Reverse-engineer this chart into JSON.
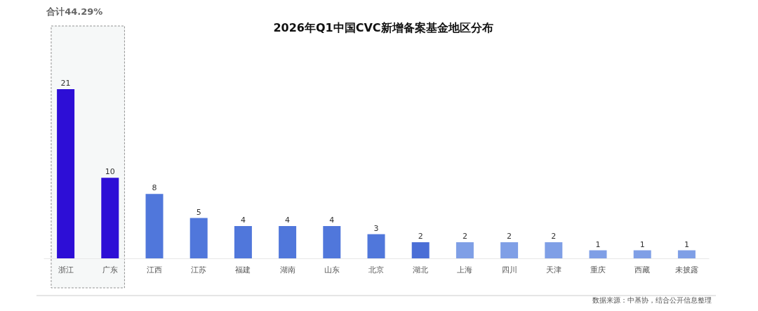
{
  "chart_data": {
    "type": "bar",
    "title": "2026年Q1中国CVC新增备案基金地区分布",
    "categories": [
      "浙江",
      "广东",
      "江西",
      "江苏",
      "福建",
      "湖南",
      "山东",
      "北京",
      "湖北",
      "上海",
      "四川",
      "天津",
      "重庆",
      "西藏",
      "未披露"
    ],
    "values": [
      21,
      10,
      8,
      5,
      4,
      4,
      4,
      3,
      2,
      2,
      2,
      2,
      1,
      1,
      1
    ],
    "colors": [
      "#2d0ed6",
      "#2d0ed6",
      "#5077db",
      "#5077db",
      "#5077db",
      "#5077db",
      "#5077db",
      "#5077db",
      "#4a6ed6",
      "#7f9fe6",
      "#7f9fe6",
      "#7f9fe6",
      "#7f9fe6",
      "#7f9fe6",
      "#7f9fe6"
    ],
    "tick_labels": "x",
    "data_labels": true,
    "grid": false,
    "bands": [
      {
        "axis": "x",
        "from": "浙江",
        "to": "广东",
        "label": "合计44.29%",
        "color": "#f6f8f8"
      }
    ],
    "annotations": [
      "数据来源：中基协，结合公开信息整理"
    ]
  }
}
